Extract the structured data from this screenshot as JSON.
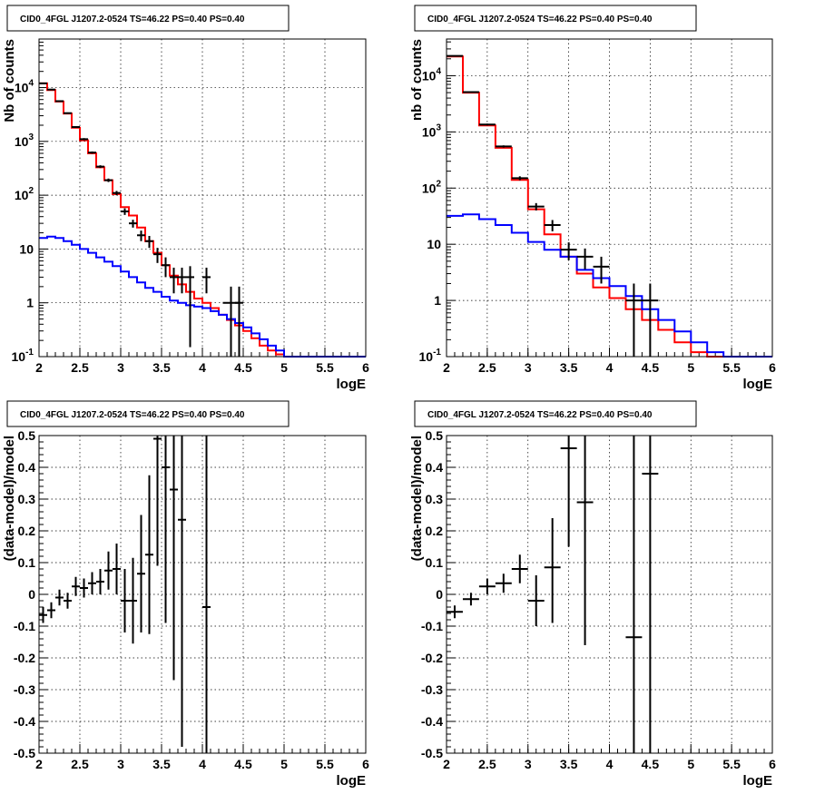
{
  "chart_data": [
    {
      "type": "line",
      "title": "CID0_4FGL J1207.2-0524 TS=46.22 PS=0.40 PS=0.40",
      "xlabel": "logE",
      "ylabel": "Nb of counts",
      "xlim": [
        2,
        6
      ],
      "ylim": [
        0.1,
        80000
      ],
      "yscale": "log",
      "grid": true,
      "x_ticks": [
        "2",
        "2.5",
        "3",
        "3.5",
        "4",
        "4.5",
        "5",
        "5.5",
        "6"
      ],
      "y_ticks": [
        {
          "v": 0.1,
          "base": "10",
          "exp": "-1"
        },
        {
          "v": 1,
          "label": "1"
        },
        {
          "v": 10,
          "label": "10"
        },
        {
          "v": 100,
          "base": "10",
          "exp": "2"
        },
        {
          "v": 1000,
          "base": "10",
          "exp": "3"
        },
        {
          "v": 10000,
          "base": "10",
          "exp": "4"
        }
      ],
      "series": [
        {
          "kind": "step",
          "color": "#ff0000",
          "edges": [
            2.0,
            2.1,
            2.2,
            2.3,
            2.4,
            2.5,
            2.6,
            2.7,
            2.8,
            2.9,
            3.0,
            3.1,
            3.2,
            3.3,
            3.4,
            3.5,
            3.6,
            3.7,
            3.8,
            3.9,
            4.0,
            4.1,
            4.2,
            4.3,
            4.4,
            4.5,
            4.6,
            4.7,
            4.8,
            4.9,
            5.0,
            5.1,
            5.2,
            5.3,
            5.4,
            5.5,
            5.6,
            5.7,
            5.8,
            5.9,
            6.0
          ],
          "values": [
            12000,
            9000,
            5500,
            3300,
            1800,
            1050,
            600,
            330,
            190,
            105,
            60,
            42,
            25,
            14,
            8.5,
            5,
            3.2,
            2.2,
            1.6,
            1.2,
            1.0,
            0.8,
            0.6,
            0.48,
            0.38,
            0.3,
            0.22,
            0.16,
            0.13,
            0.11,
            0.1,
            0.1,
            0.1,
            0.1,
            0.1,
            0.1,
            0.1,
            0.1,
            0.1,
            0.1
          ]
        },
        {
          "kind": "step",
          "color": "#0000ff",
          "edges": [
            2.0,
            2.1,
            2.2,
            2.3,
            2.4,
            2.5,
            2.6,
            2.7,
            2.8,
            2.9,
            3.0,
            3.1,
            3.2,
            3.3,
            3.4,
            3.5,
            3.6,
            3.7,
            3.8,
            3.9,
            4.0,
            4.1,
            4.2,
            4.3,
            4.4,
            4.5,
            4.6,
            4.7,
            4.8,
            4.9,
            5.0,
            5.1,
            5.2,
            5.3,
            5.4,
            5.5,
            5.6,
            5.7,
            5.8,
            5.9,
            6.0
          ],
          "values": [
            16,
            17,
            16,
            14,
            12,
            10,
            8.5,
            7,
            5.8,
            4.8,
            3.8,
            3.0,
            2.4,
            1.9,
            1.6,
            1.3,
            1.1,
            1.0,
            0.9,
            0.85,
            0.8,
            0.7,
            0.6,
            0.5,
            0.42,
            0.35,
            0.27,
            0.21,
            0.16,
            0.13,
            0.1,
            0.1,
            0.1,
            0.1,
            0.1,
            0.1,
            0.1,
            0.1,
            0.1,
            0.1
          ]
        },
        {
          "kind": "points",
          "color": "#000000",
          "points": [
            {
              "x": 2.05,
              "y": 12000,
              "xerr": 0.05,
              "ylo": 11800,
              "yhi": 12200
            },
            {
              "x": 2.15,
              "y": 9200,
              "xerr": 0.05,
              "ylo": 9000,
              "yhi": 9400
            },
            {
              "x": 2.25,
              "y": 5600,
              "xerr": 0.05,
              "ylo": 5450,
              "yhi": 5750
            },
            {
              "x": 2.35,
              "y": 3350,
              "xerr": 0.05,
              "ylo": 3250,
              "yhi": 3450
            },
            {
              "x": 2.45,
              "y": 1850,
              "xerr": 0.05,
              "ylo": 1780,
              "yhi": 1920
            },
            {
              "x": 2.55,
              "y": 1100,
              "xerr": 0.05,
              "ylo": 1050,
              "yhi": 1150
            },
            {
              "x": 2.65,
              "y": 620,
              "xerr": 0.05,
              "ylo": 590,
              "yhi": 650
            },
            {
              "x": 2.75,
              "y": 340,
              "xerr": 0.05,
              "ylo": 320,
              "yhi": 360
            },
            {
              "x": 2.85,
              "y": 190,
              "xerr": 0.05,
              "ylo": 176,
              "yhi": 204
            },
            {
              "x": 2.95,
              "y": 110,
              "xerr": 0.05,
              "ylo": 100,
              "yhi": 120
            },
            {
              "x": 3.05,
              "y": 50,
              "xerr": 0.05,
              "ylo": 43,
              "yhi": 57
            },
            {
              "x": 3.15,
              "y": 30,
              "xerr": 0.05,
              "ylo": 25,
              "yhi": 35
            },
            {
              "x": 3.25,
              "y": 18,
              "xerr": 0.05,
              "ylo": 14,
              "yhi": 22
            },
            {
              "x": 3.35,
              "y": 14,
              "xerr": 0.05,
              "ylo": 10.5,
              "yhi": 17.5
            },
            {
              "x": 3.45,
              "y": 8,
              "xerr": 0.05,
              "ylo": 5.5,
              "yhi": 10.5
            },
            {
              "x": 3.55,
              "y": 5,
              "xerr": 0.05,
              "ylo": 3,
              "yhi": 7
            },
            {
              "x": 3.65,
              "y": 3,
              "xerr": 0.05,
              "ylo": 1.5,
              "yhi": 4.5
            },
            {
              "x": 3.75,
              "y": 3,
              "xerr": 0.05,
              "ylo": 1.5,
              "yhi": 4.5
            },
            {
              "x": 3.85,
              "y": 3,
              "xerr": 0.05,
              "ylo": 0.15,
              "yhi": 4.8
            },
            {
              "x": 4.05,
              "y": 3,
              "xerr": 0.05,
              "ylo": 1.5,
              "yhi": 4.5
            },
            {
              "x": 4.35,
              "y": 1,
              "xerr": 0.1,
              "ylo": 0.1,
              "yhi": 2.0
            },
            {
              "x": 4.45,
              "y": 1,
              "xerr": 0.05,
              "ylo": 0.1,
              "yhi": 2.0
            }
          ]
        }
      ]
    },
    {
      "type": "line",
      "title": "CID0_4FGL J1207.2-0524 TS=46.22 PS=0.40 PS=0.40",
      "xlabel": "logE",
      "ylabel": "nb of counts",
      "xlim": [
        2,
        6
      ],
      "ylim": [
        0.1,
        45000
      ],
      "yscale": "log",
      "grid": true,
      "x_ticks": [
        "2",
        "2.5",
        "3",
        "3.5",
        "4",
        "4.5",
        "5",
        "5.5",
        "6"
      ],
      "y_ticks": [
        {
          "v": 0.1,
          "base": "10",
          "exp": "-1"
        },
        {
          "v": 1,
          "label": "1"
        },
        {
          "v": 10,
          "label": "10"
        },
        {
          "v": 100,
          "base": "10",
          "exp": "2"
        },
        {
          "v": 1000,
          "base": "10",
          "exp": "3"
        },
        {
          "v": 10000,
          "base": "10",
          "exp": "4"
        }
      ],
      "series": [
        {
          "kind": "step",
          "color": "#ff0000",
          "edges": [
            2.0,
            2.2,
            2.4,
            2.6,
            2.8,
            3.0,
            3.2,
            3.4,
            3.6,
            3.8,
            4.0,
            4.2,
            4.4,
            4.6,
            4.8,
            5.0,
            5.2,
            5.4,
            5.6,
            5.8,
            6.0
          ],
          "values": [
            22000,
            5000,
            1300,
            520,
            140,
            42,
            15,
            6,
            3,
            1.7,
            1.1,
            0.7,
            0.45,
            0.3,
            0.18,
            0.12,
            0.1,
            0.1,
            0.1,
            0.1
          ]
        },
        {
          "kind": "step",
          "color": "#0000ff",
          "edges": [
            2.0,
            2.2,
            2.4,
            2.6,
            2.8,
            3.0,
            3.2,
            3.4,
            3.6,
            3.8,
            4.0,
            4.2,
            4.4,
            4.6,
            4.8,
            5.0,
            5.2,
            5.4,
            5.6,
            5.8,
            6.0
          ],
          "values": [
            32,
            34,
            28,
            22,
            16,
            11,
            8,
            6,
            3.5,
            2.5,
            1.8,
            1.2,
            0.7,
            0.45,
            0.28,
            0.18,
            0.12,
            0.1,
            0.1,
            0.1
          ]
        },
        {
          "kind": "points",
          "color": "#000000",
          "points": [
            {
              "x": 2.1,
              "y": 22500,
              "xerr": 0.1,
              "ylo": 22200,
              "yhi": 22800
            },
            {
              "x": 2.3,
              "y": 5100,
              "xerr": 0.1,
              "ylo": 5000,
              "yhi": 5200
            },
            {
              "x": 2.5,
              "y": 1350,
              "xerr": 0.1,
              "ylo": 1300,
              "yhi": 1400
            },
            {
              "x": 2.7,
              "y": 550,
              "xerr": 0.1,
              "ylo": 525,
              "yhi": 575
            },
            {
              "x": 2.9,
              "y": 150,
              "xerr": 0.1,
              "ylo": 138,
              "yhi": 162
            },
            {
              "x": 3.1,
              "y": 47,
              "xerr": 0.1,
              "ylo": 40,
              "yhi": 54
            },
            {
              "x": 3.3,
              "y": 22,
              "xerr": 0.1,
              "ylo": 17,
              "yhi": 27
            },
            {
              "x": 3.5,
              "y": 8,
              "xerr": 0.1,
              "ylo": 5.2,
              "yhi": 10.8
            },
            {
              "x": 3.7,
              "y": 6,
              "xerr": 0.1,
              "ylo": 3.6,
              "yhi": 8.4
            },
            {
              "x": 3.9,
              "y": 4,
              "xerr": 0.1,
              "ylo": 2,
              "yhi": 6
            },
            {
              "x": 4.3,
              "y": 1,
              "xerr": 0.1,
              "ylo": 0.1,
              "yhi": 2.0
            },
            {
              "x": 4.5,
              "y": 1,
              "xerr": 0.1,
              "ylo": 0.1,
              "yhi": 2.0
            }
          ]
        }
      ]
    },
    {
      "type": "scatter",
      "title": "CID0_4FGL J1207.2-0524 TS=46.22 PS=0.40 PS=0.40",
      "xlabel": "logE",
      "ylabel": "(data-model)/model",
      "xlim": [
        2,
        6
      ],
      "ylim": [
        -0.5,
        0.5
      ],
      "yscale": "linear",
      "grid": true,
      "x_ticks": [
        "2",
        "2.5",
        "3",
        "3.5",
        "4",
        "4.5",
        "5",
        "5.5",
        "6"
      ],
      "y_ticks": [
        "-0.5",
        "-0.4",
        "-0.3",
        "-0.2",
        "-0.1",
        "0",
        "0.1",
        "0.2",
        "0.3",
        "0.4",
        "0.5"
      ],
      "series": [
        {
          "kind": "points",
          "color": "#000000",
          "points": [
            {
              "x": 2.05,
              "y": -0.065,
              "xerr": 0.05,
              "ylo": -0.09,
              "yhi": -0.04
            },
            {
              "x": 2.15,
              "y": -0.05,
              "xerr": 0.05,
              "ylo": -0.075,
              "yhi": -0.025
            },
            {
              "x": 2.25,
              "y": -0.01,
              "xerr": 0.05,
              "ylo": -0.035,
              "yhi": 0.015
            },
            {
              "x": 2.35,
              "y": -0.02,
              "xerr": 0.05,
              "ylo": -0.045,
              "yhi": 0.005
            },
            {
              "x": 2.45,
              "y": 0.025,
              "xerr": 0.05,
              "ylo": -0.005,
              "yhi": 0.055
            },
            {
              "x": 2.55,
              "y": 0.02,
              "xerr": 0.05,
              "ylo": -0.01,
              "yhi": 0.05
            },
            {
              "x": 2.65,
              "y": 0.035,
              "xerr": 0.05,
              "ylo": 0.0,
              "yhi": 0.07
            },
            {
              "x": 2.75,
              "y": 0.04,
              "xerr": 0.05,
              "ylo": 0.0,
              "yhi": 0.08
            },
            {
              "x": 2.85,
              "y": 0.075,
              "xerr": 0.05,
              "ylo": 0.015,
              "yhi": 0.135
            },
            {
              "x": 2.95,
              "y": 0.08,
              "xerr": 0.05,
              "ylo": 0.0,
              "yhi": 0.16
            },
            {
              "x": 3.05,
              "y": -0.02,
              "xerr": 0.05,
              "ylo": -0.12,
              "yhi": 0.08
            },
            {
              "x": 3.15,
              "y": -0.02,
              "xerr": 0.05,
              "ylo": -0.155,
              "yhi": 0.115
            },
            {
              "x": 3.25,
              "y": 0.065,
              "xerr": 0.05,
              "ylo": -0.12,
              "yhi": 0.25
            },
            {
              "x": 3.35,
              "y": 0.125,
              "xerr": 0.05,
              "ylo": -0.125,
              "yhi": 0.375
            },
            {
              "x": 3.45,
              "y": 0.49,
              "xerr": 0.05,
              "ylo": 0.09,
              "yhi": 0.5
            },
            {
              "x": 3.55,
              "y": 0.4,
              "xerr": 0.05,
              "ylo": -0.09,
              "yhi": 0.5
            },
            {
              "x": 3.65,
              "y": 0.33,
              "xerr": 0.05,
              "ylo": -0.27,
              "yhi": 0.5
            },
            {
              "x": 3.75,
              "y": 0.235,
              "xerr": 0.05,
              "ylo": -0.48,
              "yhi": 0.5
            },
            {
              "x": 4.05,
              "y": -0.04,
              "xerr": 0.05,
              "ylo": -0.5,
              "yhi": 0.5
            }
          ]
        }
      ]
    },
    {
      "type": "scatter",
      "title": "CID0_4FGL J1207.2-0524 TS=46.22 PS=0.40 PS=0.40",
      "xlabel": "logE",
      "ylabel": "(data-model)/model",
      "xlim": [
        2,
        6
      ],
      "ylim": [
        -0.5,
        0.5
      ],
      "yscale": "linear",
      "grid": true,
      "x_ticks": [
        "2",
        "2.5",
        "3",
        "3.5",
        "4",
        "4.5",
        "5",
        "5.5",
        "6"
      ],
      "y_ticks": [
        "-0.5",
        "-0.4",
        "-0.3",
        "-0.2",
        "-0.1",
        "0",
        "0.1",
        "0.2",
        "0.3",
        "0.4",
        "0.5"
      ],
      "series": [
        {
          "kind": "points",
          "color": "#000000",
          "points": [
            {
              "x": 2.1,
              "y": -0.055,
              "xerr": 0.1,
              "ylo": -0.075,
              "yhi": -0.035
            },
            {
              "x": 2.3,
              "y": -0.015,
              "xerr": 0.1,
              "ylo": -0.035,
              "yhi": 0.005
            },
            {
              "x": 2.5,
              "y": 0.025,
              "xerr": 0.1,
              "ylo": 0.0,
              "yhi": 0.05
            },
            {
              "x": 2.7,
              "y": 0.035,
              "xerr": 0.1,
              "ylo": 0.005,
              "yhi": 0.065
            },
            {
              "x": 2.9,
              "y": 0.08,
              "xerr": 0.1,
              "ylo": 0.035,
              "yhi": 0.125
            },
            {
              "x": 3.1,
              "y": -0.02,
              "xerr": 0.1,
              "ylo": -0.1,
              "yhi": 0.06
            },
            {
              "x": 3.3,
              "y": 0.085,
              "xerr": 0.1,
              "ylo": -0.09,
              "yhi": 0.24
            },
            {
              "x": 3.5,
              "y": 0.46,
              "xerr": 0.1,
              "ylo": 0.15,
              "yhi": 0.5
            },
            {
              "x": 3.7,
              "y": 0.29,
              "xerr": 0.1,
              "ylo": -0.16,
              "yhi": 0.5
            },
            {
              "x": 4.3,
              "y": -0.135,
              "xerr": 0.1,
              "ylo": -0.5,
              "yhi": 0.5
            },
            {
              "x": 4.5,
              "y": 0.38,
              "xerr": 0.1,
              "ylo": -0.5,
              "yhi": 0.5
            }
          ]
        }
      ]
    }
  ]
}
